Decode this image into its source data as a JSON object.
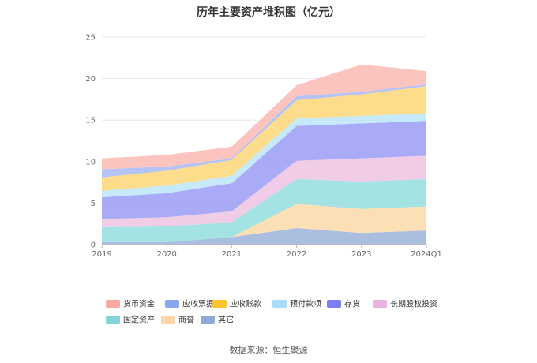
{
  "chart_data": {
    "type": "area",
    "stacked": true,
    "title": "历年主要资产堆积图（亿元）",
    "xlabel": "",
    "ylabel": "",
    "categories": [
      "2019",
      "2020",
      "2021",
      "2022",
      "2023",
      "2024Q1"
    ],
    "ylim": [
      0,
      25
    ],
    "yticks": [
      0,
      5,
      10,
      15,
      20,
      25
    ],
    "grid": true,
    "legend_position": "bottom",
    "series": [
      {
        "name": "其它",
        "color": "#9bb3d9",
        "values": [
          0.3,
          0.3,
          0.9,
          2.0,
          1.4,
          1.7
        ]
      },
      {
        "name": "商誉",
        "color": "#fdd9a8",
        "values": [
          0.0,
          0.0,
          0.0,
          2.9,
          2.9,
          2.9
        ]
      },
      {
        "name": "固定资产",
        "color": "#94dede",
        "values": [
          1.8,
          1.9,
          1.8,
          3.0,
          3.3,
          3.3
        ]
      },
      {
        "name": "长期股权投资",
        "color": "#eec3e3",
        "values": [
          1.0,
          1.1,
          1.3,
          2.2,
          2.8,
          2.8
        ]
      },
      {
        "name": "存货",
        "color": "#9a9cf6",
        "values": [
          2.6,
          2.9,
          3.4,
          4.2,
          4.2,
          4.2
        ]
      },
      {
        "name": "预付款项",
        "color": "#bde6fa",
        "values": [
          0.8,
          0.9,
          0.9,
          0.9,
          0.9,
          0.9
        ]
      },
      {
        "name": "应收账款",
        "color": "#fdd777",
        "values": [
          1.6,
          1.8,
          1.9,
          2.2,
          2.6,
          3.3
        ]
      },
      {
        "name": "应收票据",
        "color": "#a8b8f4",
        "values": [
          1.0,
          0.5,
          0.2,
          0.5,
          0.3,
          0.2
        ]
      },
      {
        "name": "货币资金",
        "color": "#fcbab3",
        "values": [
          1.3,
          1.4,
          1.4,
          1.3,
          3.3,
          1.6
        ]
      }
    ],
    "legend_order": [
      "货币资金",
      "应收票据",
      "应收账款",
      "预付款项",
      "存货",
      "长期股权投资",
      "固定资产",
      "商誉",
      "其它"
    ],
    "legend_swatch_colors": {
      "货币资金": "#f8a89c",
      "应收票据": "#8aa5f1",
      "应收账款": "#fbc531",
      "预付款项": "#a8dcf8",
      "存货": "#7b7ff0",
      "长期股权投资": "#e7b2dc",
      "固定资产": "#7fd6d6",
      "商誉": "#fdd9a8",
      "其它": "#8faad9"
    }
  },
  "footer": {
    "source": "数据来源：恒生聚源"
  }
}
